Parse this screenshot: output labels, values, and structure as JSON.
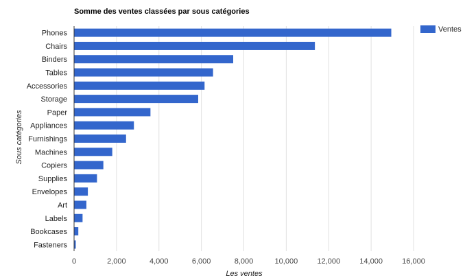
{
  "chart_data": {
    "type": "bar",
    "orientation": "horizontal",
    "title": "Somme des ventes classées par sous catégories",
    "xlabel": "Les ventes",
    "ylabel": "Sous catégories",
    "xlim": [
      0,
      16000
    ],
    "xticks": [
      0,
      2000,
      4000,
      6000,
      8000,
      10000,
      12000,
      14000,
      16000
    ],
    "xtick_labels": [
      "0",
      "2,000",
      "4,000",
      "6,000",
      "8,000",
      "10,000",
      "12,000",
      "14,000",
      "16,000"
    ],
    "grid": true,
    "legend_position": "top-right",
    "categories": [
      "Phones",
      "Chairs",
      "Binders",
      "Tables",
      "Accessories",
      "Storage",
      "Paper",
      "Appliances",
      "Furnishings",
      "Machines",
      "Copiers",
      "Supplies",
      "Envelopes",
      "Art",
      "Labels",
      "Bookcases",
      "Fasteners"
    ],
    "series": [
      {
        "name": "Ventes",
        "color": "#3366cc",
        "values": [
          14950,
          11350,
          7500,
          6550,
          6150,
          5850,
          3600,
          2820,
          2450,
          1800,
          1380,
          1080,
          650,
          580,
          400,
          200,
          80
        ]
      }
    ]
  }
}
